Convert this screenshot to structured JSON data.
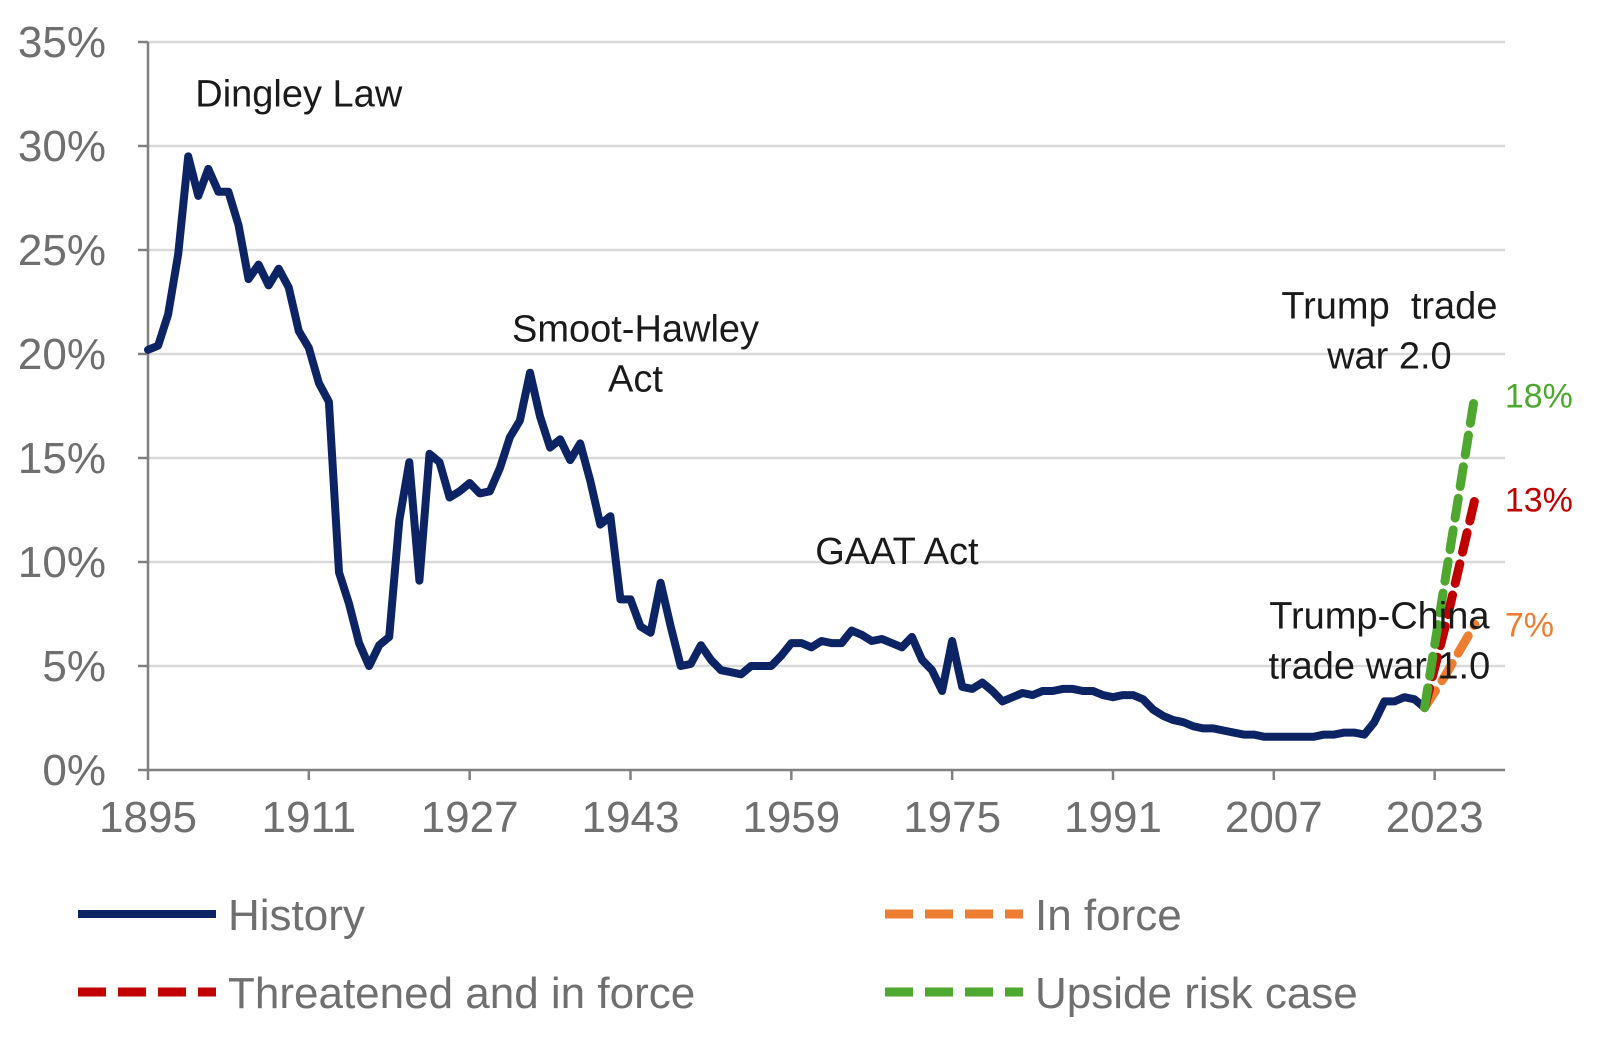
{
  "chart_data": {
    "type": "line",
    "title": "",
    "xlabel": "",
    "ylabel": "",
    "xlim": [
      1895,
      2030
    ],
    "ylim": [
      0,
      35
    ],
    "x_ticks": [
      "1895",
      "1911",
      "1927",
      "1943",
      "1959",
      "1975",
      "1991",
      "2007",
      "2023"
    ],
    "y_ticks": [
      "0%",
      "5%",
      "10%",
      "15%",
      "20%",
      "25%",
      "30%",
      "35%"
    ],
    "grid": true,
    "legend_position": "bottom",
    "colors": {
      "history": "#0c2364",
      "in_force": "#ed7d31",
      "threatened": "#c00000",
      "upside": "#4ea72e",
      "grid": "#d9d9d9",
      "axis": "#808080"
    },
    "series": [
      {
        "name": "History",
        "key": "history",
        "style": "solid",
        "points": [
          [
            1895,
            20.2
          ],
          [
            1896,
            20.4
          ],
          [
            1897,
            21.9
          ],
          [
            1898,
            24.8
          ],
          [
            1899,
            29.5
          ],
          [
            1900,
            27.6
          ],
          [
            1901,
            28.9
          ],
          [
            1902,
            27.8
          ],
          [
            1903,
            27.8
          ],
          [
            1904,
            26.2
          ],
          [
            1905,
            23.6
          ],
          [
            1906,
            24.3
          ],
          [
            1907,
            23.3
          ],
          [
            1908,
            24.1
          ],
          [
            1909,
            23.2
          ],
          [
            1910,
            21.1
          ],
          [
            1911,
            20.3
          ],
          [
            1912,
            18.6
          ],
          [
            1913,
            17.7
          ],
          [
            1914,
            9.5
          ],
          [
            1915,
            8.0
          ],
          [
            1916,
            6.1
          ],
          [
            1917,
            5.0
          ],
          [
            1918,
            6.0
          ],
          [
            1919,
            6.4
          ],
          [
            1920,
            12.0
          ],
          [
            1921,
            14.8
          ],
          [
            1922,
            9.1
          ],
          [
            1923,
            15.2
          ],
          [
            1924,
            14.8
          ],
          [
            1925,
            13.1
          ],
          [
            1926,
            13.4
          ],
          [
            1927,
            13.8
          ],
          [
            1928,
            13.3
          ],
          [
            1929,
            13.4
          ],
          [
            1930,
            14.5
          ],
          [
            1931,
            16.0
          ],
          [
            1932,
            16.8
          ],
          [
            1933,
            19.1
          ],
          [
            1934,
            17.0
          ],
          [
            1935,
            15.5
          ],
          [
            1936,
            15.9
          ],
          [
            1937,
            14.9
          ],
          [
            1938,
            15.7
          ],
          [
            1939,
            13.9
          ],
          [
            1940,
            11.8
          ],
          [
            1941,
            12.2
          ],
          [
            1942,
            8.2
          ],
          [
            1943,
            8.2
          ],
          [
            1944,
            6.9
          ],
          [
            1945,
            6.6
          ],
          [
            1946,
            9.0
          ],
          [
            1947,
            6.9
          ],
          [
            1948,
            5.0
          ],
          [
            1949,
            5.1
          ],
          [
            1950,
            6.0
          ],
          [
            1951,
            5.3
          ],
          [
            1952,
            4.8
          ],
          [
            1953,
            4.7
          ],
          [
            1954,
            4.6
          ],
          [
            1955,
            5.0
          ],
          [
            1956,
            5.0
          ],
          [
            1957,
            5.0
          ],
          [
            1958,
            5.5
          ],
          [
            1959,
            6.1
          ],
          [
            1960,
            6.1
          ],
          [
            1961,
            5.9
          ],
          [
            1962,
            6.2
          ],
          [
            1963,
            6.1
          ],
          [
            1964,
            6.1
          ],
          [
            1965,
            6.7
          ],
          [
            1966,
            6.5
          ],
          [
            1967,
            6.2
          ],
          [
            1968,
            6.3
          ],
          [
            1969,
            6.1
          ],
          [
            1970,
            5.9
          ],
          [
            1971,
            6.4
          ],
          [
            1972,
            5.3
          ],
          [
            1973,
            4.8
          ],
          [
            1974,
            3.8
          ],
          [
            1975,
            6.2
          ],
          [
            1976,
            4.0
          ],
          [
            1977,
            3.9
          ],
          [
            1978,
            4.2
          ],
          [
            1979,
            3.8
          ],
          [
            1980,
            3.3
          ],
          [
            1981,
            3.5
          ],
          [
            1982,
            3.7
          ],
          [
            1983,
            3.6
          ],
          [
            1984,
            3.8
          ],
          [
            1985,
            3.8
          ],
          [
            1986,
            3.9
          ],
          [
            1987,
            3.9
          ],
          [
            1988,
            3.8
          ],
          [
            1989,
            3.8
          ],
          [
            1990,
            3.6
          ],
          [
            1991,
            3.5
          ],
          [
            1992,
            3.6
          ],
          [
            1993,
            3.6
          ],
          [
            1994,
            3.4
          ],
          [
            1995,
            2.9
          ],
          [
            1996,
            2.6
          ],
          [
            1997,
            2.4
          ],
          [
            1998,
            2.3
          ],
          [
            1999,
            2.1
          ],
          [
            2000,
            2.0
          ],
          [
            2001,
            2.0
          ],
          [
            2002,
            1.9
          ],
          [
            2003,
            1.8
          ],
          [
            2004,
            1.7
          ],
          [
            2005,
            1.7
          ],
          [
            2006,
            1.6
          ],
          [
            2007,
            1.6
          ],
          [
            2008,
            1.6
          ],
          [
            2009,
            1.6
          ],
          [
            2010,
            1.6
          ],
          [
            2011,
            1.6
          ],
          [
            2012,
            1.7
          ],
          [
            2013,
            1.7
          ],
          [
            2014,
            1.8
          ],
          [
            2015,
            1.8
          ],
          [
            2016,
            1.7
          ],
          [
            2017,
            2.3
          ],
          [
            2018,
            3.3
          ],
          [
            2019,
            3.3
          ],
          [
            2020,
            3.5
          ],
          [
            2021,
            3.4
          ],
          [
            2022,
            3.0
          ]
        ]
      },
      {
        "name": "In force",
        "key": "in_force",
        "style": "dashed",
        "points": [
          [
            2022,
            3.0
          ],
          [
            2024,
            4.5
          ],
          [
            2027,
            7.0
          ]
        ],
        "end_label": "7%"
      },
      {
        "name": "Threatened and in force",
        "key": "threatened",
        "style": "dashed",
        "points": [
          [
            2022,
            3.0
          ],
          [
            2024,
            6.8
          ],
          [
            2027,
            13.0
          ]
        ],
        "end_label": "13%"
      },
      {
        "name": "Upside risk case",
        "key": "upside",
        "style": "dashed",
        "points": [
          [
            2022,
            3.0
          ],
          [
            2024,
            9.0
          ],
          [
            2027,
            18.0
          ]
        ],
        "end_label": "18%"
      }
    ],
    "annotations": [
      {
        "id": "dingley",
        "lines": [
          "Dingley Law"
        ],
        "x": 1910,
        "y": 31.9,
        "anchor": "middle"
      },
      {
        "id": "smoot",
        "lines": [
          "Smoot-Hawley",
          "Act"
        ],
        "x": 1943.5,
        "y": 20.6,
        "anchor": "middle"
      },
      {
        "id": "gaat",
        "lines": [
          "GAAT Act"
        ],
        "x": 1969.5,
        "y": 9.9,
        "anchor": "middle"
      },
      {
        "id": "trump1",
        "lines": [
          "Trump-China",
          "trade war 1.0"
        ],
        "x": 2017.5,
        "y": 6.8,
        "anchor": "middle"
      },
      {
        "id": "trump2",
        "lines": [
          "Trump  trade",
          "war 2.0"
        ],
        "x": 2018.5,
        "y": 21.7,
        "anchor": "middle"
      }
    ]
  },
  "legend": {
    "items": [
      {
        "label": "History",
        "key": "history",
        "style": "solid"
      },
      {
        "label": "In force",
        "key": "in_force",
        "style": "dashed"
      },
      {
        "label": "Threatened and in force",
        "key": "threatened",
        "style": "dashed"
      },
      {
        "label": "Upside risk case",
        "key": "upside",
        "style": "dashed"
      }
    ]
  }
}
